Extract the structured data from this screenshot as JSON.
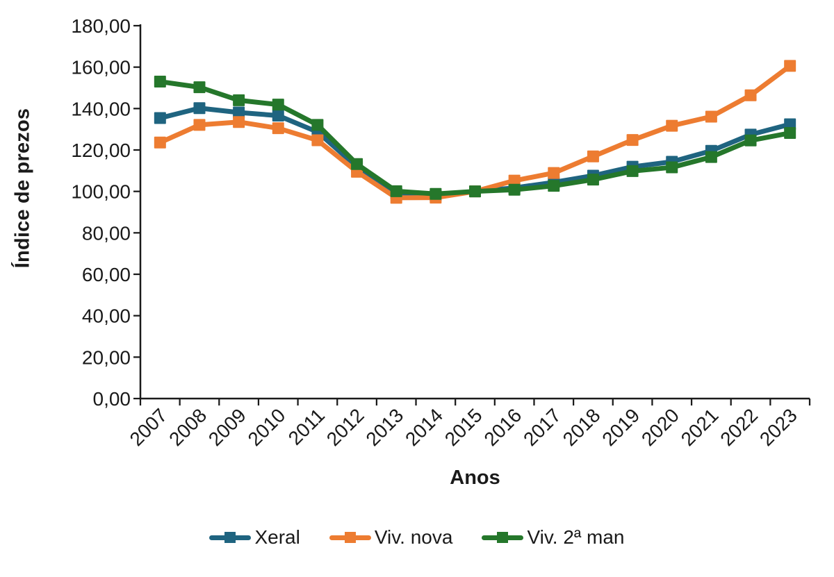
{
  "chart_data": {
    "type": "line",
    "title": "",
    "xlabel": "Anos",
    "ylabel": "Índice de prezos",
    "categories": [
      "2007",
      "2008",
      "2009",
      "2010",
      "2011",
      "2012",
      "2013",
      "2014",
      "2015",
      "2016",
      "2017",
      "2018",
      "2019",
      "2020",
      "2021",
      "2022",
      "2023"
    ],
    "series": [
      {
        "name": "Xeral",
        "color": "#1f6480",
        "values": [
          135.4,
          140.2,
          138.1,
          136.6,
          128.7,
          111.9,
          99.0,
          98.0,
          100.0,
          101.7,
          104.4,
          107.6,
          111.9,
          114.3,
          119.6,
          127.4,
          132.4
        ]
      },
      {
        "name": "Viv. nova",
        "color": "#ed7c31",
        "values": [
          123.6,
          132.1,
          133.5,
          130.5,
          124.7,
          109.5,
          96.9,
          97.0,
          100.0,
          105.2,
          108.9,
          116.9,
          124.8,
          131.7,
          136.1,
          146.4,
          160.6
        ]
      },
      {
        "name": "Viv. 2ª man",
        "color": "#25772b",
        "values": [
          153.0,
          150.3,
          144.0,
          141.9,
          132.1,
          113.2,
          100.1,
          98.8,
          100.0,
          100.8,
          102.7,
          105.7,
          109.8,
          111.6,
          116.6,
          124.6,
          128.2
        ]
      }
    ],
    "ylim": [
      0,
      180
    ],
    "y_tick_step": 20,
    "y_tick_labels": [
      "0,00",
      "20,00",
      "40,00",
      "60,00",
      "80,00",
      "100,00",
      "120,00",
      "140,00",
      "160,00",
      "180,00"
    ],
    "grid": false,
    "legend_position": "bottom",
    "axis_color": "#1a1a1a"
  }
}
